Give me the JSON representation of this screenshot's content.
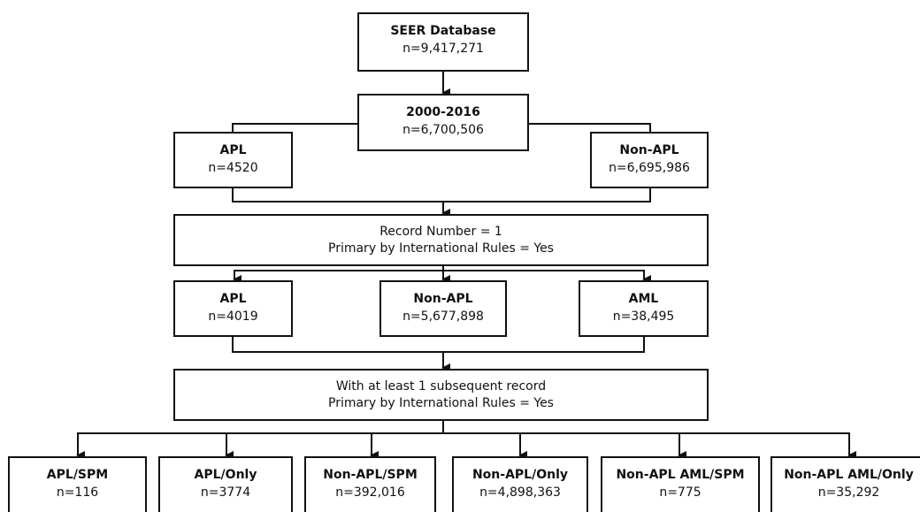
{
  "nodes": [
    {
      "title": "SEER Database",
      "count": "n=9,417,271"
    },
    {
      "title": "2000-2016",
      "count": "n=6,700,506"
    },
    {
      "title": "APL",
      "count": "n=4520"
    },
    {
      "title": "Non-APL",
      "count": "n=6,695,986"
    },
    {
      "lines": [
        "Record Number = 1",
        "Primary by International Rules = Yes"
      ]
    },
    {
      "title": "APL",
      "count": "n=4019"
    },
    {
      "title": "Non-APL",
      "count": "n=5,677,898"
    },
    {
      "title": "AML",
      "count": "n=38,495"
    },
    {
      "lines": [
        "With at least 1 subsequent record",
        "Primary by International Rules = Yes"
      ]
    },
    {
      "title": "APL/SPM",
      "count": "n=116"
    },
    {
      "title": "APL/Only",
      "count": "n=3774"
    },
    {
      "title": "Non-APL/SPM",
      "count": "n=392,016"
    },
    {
      "title": "Non-APL/Only",
      "count": "n=4,898,363"
    },
    {
      "title": "Non-APL AML/SPM",
      "count": "n=775"
    },
    {
      "title": "Non-APL AML/Only",
      "count": "n=35,292"
    }
  ]
}
